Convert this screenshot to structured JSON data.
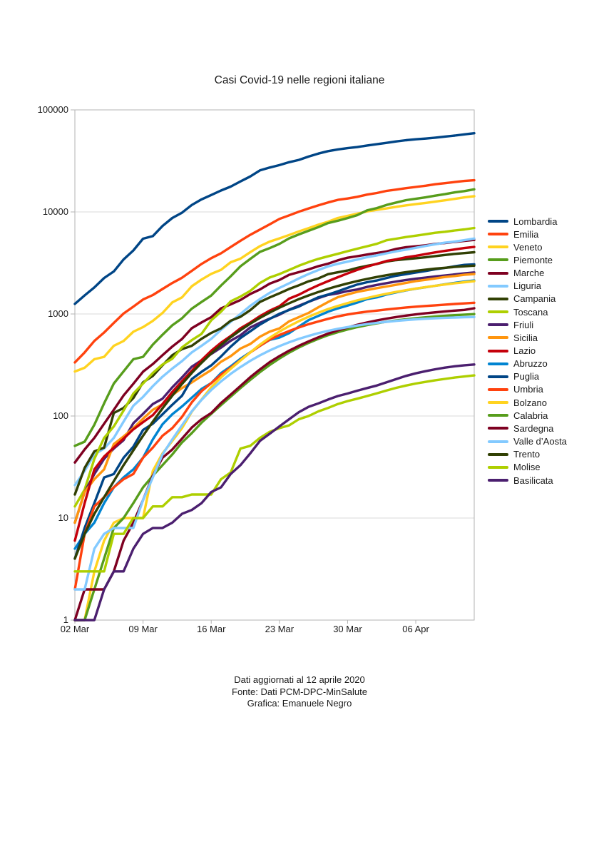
{
  "footer": {
    "updated": "Dati aggiornati al 12 aprile 2020",
    "source": "Fonte: Dati PCM-DPC-MinSalute",
    "credit": "Grafica: Emanuele Negro"
  },
  "axis_colors": {
    "grid": "#d9d9d9",
    "border": "#b3b3b3",
    "tick": "#b3b3b3"
  },
  "chart_data": {
    "type": "line",
    "title": "Casi Covid-19 nelle regioni italiane",
    "xlabel": "",
    "ylabel": "",
    "y_scale": "log",
    "ylim": [
      1,
      100000
    ],
    "grid": "horizontal",
    "legend_position": "right",
    "num_days": 42,
    "x_start_date": "02 Mar",
    "x_end_date": "12 Apr",
    "x_tick_labels": [
      "02 Mar",
      "09 Mar",
      "16 Mar",
      "23 Mar",
      "30 Mar",
      "06 Apr"
    ],
    "x_tick_day_indices": [
      0,
      7,
      14,
      21,
      28,
      35
    ],
    "y_tick_labels": [
      "100000",
      "10000",
      "1000",
      "100",
      "10",
      "1"
    ],
    "y_tick_values": [
      100000,
      10000,
      1000,
      100,
      10,
      1
    ],
    "series": [
      {
        "name": "Lombardia",
        "color": "#004586",
        "values": [
          1254,
          1520,
          1820,
          2251,
          2612,
          3420,
          4189,
          5469,
          5791,
          7280,
          8725,
          9820,
          11685,
          13272,
          14649,
          16220,
          17713,
          19884,
          22264,
          25515,
          27206,
          28761,
          30703,
          32346,
          34889,
          37298,
          39415,
          41007,
          42161,
          43208,
          44773,
          46065,
          47520,
          49118,
          50455,
          51534,
          52325,
          53414,
          54802,
          56048,
          57592,
          59052
        ]
      },
      {
        "name": "Emilia",
        "color": "#ff420e",
        "values": [
          335,
          420,
          544,
          658,
          816,
          1010,
          1180,
          1386,
          1533,
          1758,
          2011,
          2263,
          2644,
          3093,
          3522,
          3931,
          4525,
          5214,
          5968,
          6705,
          7555,
          8535,
          9254,
          10054,
          10816,
          11588,
          12383,
          13119,
          13531,
          14074,
          14787,
          15333,
          16089,
          16540,
          17089,
          17556,
          18059,
          18677,
          19128,
          19635,
          20098,
          20440
        ]
      },
      {
        "name": "Veneto",
        "color": "#ffd320",
        "values": [
          273,
          297,
          360,
          380,
          488,
          543,
          670,
          744,
          856,
          1023,
          1297,
          1453,
          1867,
          2172,
          2473,
          2704,
          3214,
          3484,
          4031,
          4617,
          5122,
          5505,
          5948,
          6442,
          6935,
          7497,
          8018,
          8724,
          9155,
          9625,
          10111,
          10484,
          10824,
          11226,
          11588,
          11925,
          12244,
          12619,
          13007,
          13421,
          13891,
          14251
        ]
      },
      {
        "name": "Piemonte",
        "color": "#579d1c",
        "values": [
          51,
          56,
          82,
          133,
          208,
          274,
          360,
          380,
          501,
          626,
          774,
          907,
          1126,
          1310,
          1516,
          1897,
          2341,
          2932,
          3461,
          4059,
          4420,
          4861,
          5515,
          6024,
          6534,
          7092,
          7784,
          8206,
          8712,
          9301,
          10353,
          10902,
          11709,
          12362,
          13050,
          13441,
          13883,
          14441,
          14936,
          15546,
          16008,
          16664
        ]
      },
      {
        "name": "Marche",
        "color": "#7e0021",
        "values": [
          35,
          47,
          61,
          84,
          115,
          159,
          207,
          272,
          323,
          394,
          479,
          568,
          725,
          825,
          930,
          1133,
          1242,
          1371,
          1568,
          1737,
          1981,
          2153,
          2421,
          2569,
          2736,
          2941,
          3114,
          3358,
          3558,
          3684,
          3825,
          3962,
          4098,
          4341,
          4512,
          4604,
          4710,
          4859,
          4956,
          5084,
          5210,
          5317
        ]
      },
      {
        "name": "Liguria",
        "color": "#83caff",
        "values": [
          21,
          29,
          42,
          48,
          61,
          88,
          126,
          154,
          196,
          243,
          292,
          345,
          420,
          488,
          570,
          700,
          836,
          1000,
          1200,
          1400,
          1610,
          1800,
          2000,
          2230,
          2467,
          2697,
          2924,
          3101,
          3254,
          3416,
          3603,
          3752,
          3929,
          4113,
          4274,
          4451,
          4642,
          4824,
          4995,
          5122,
          5288,
          5487
        ]
      },
      {
        "name": "Campania",
        "color": "#314004",
        "values": [
          17,
          31,
          45,
          49,
          107,
          120,
          150,
          214,
          247,
          314,
          394,
          452,
          488,
          571,
          652,
          724,
          860,
          937,
          1089,
          1310,
          1454,
          1592,
          1759,
          1910,
          2092,
          2231,
          2456,
          2560,
          2668,
          2829,
          2960,
          3086,
          3268,
          3370,
          3442,
          3517,
          3592,
          3688,
          3788,
          3878,
          3951,
          4024
        ]
      },
      {
        "name": "Toscana",
        "color": "#aecf00",
        "values": [
          13,
          19,
          38,
          61,
          79,
          113,
          166,
          208,
          264,
          320,
          364,
          470,
          554,
          638,
          866,
          1053,
          1330,
          1482,
          1682,
          2013,
          2277,
          2461,
          2699,
          2972,
          3226,
          3464,
          3676,
          3886,
          4122,
          4366,
          4608,
          4867,
          5273,
          5466,
          5671,
          5850,
          6045,
          6244,
          6389,
          6584,
          6736,
          6958
        ]
      },
      {
        "name": "Friuli",
        "color": "#4b1f6f",
        "values": [
          9,
          18,
          27,
          38,
          48,
          58,
          85,
          105,
          131,
          148,
          191,
          239,
          304,
          351,
          405,
          468,
          547,
          619,
          737,
          820,
          899,
          984,
          1104,
          1204,
          1318,
          1430,
          1536,
          1593,
          1676,
          1738,
          1841,
          1926,
          2005,
          2082,
          2153,
          2215,
          2269,
          2329,
          2383,
          2440,
          2500,
          2553
        ]
      },
      {
        "name": "Sicilia",
        "color": "#ff950e",
        "values": [
          9,
          18,
          24,
          30,
          53,
          63,
          76,
          94,
          115,
          130,
          160,
          188,
          213,
          246,
          282,
          340,
          386,
          458,
          508,
          598,
          672,
          721,
          847,
          931,
          1024,
          1164,
          1310,
          1460,
          1555,
          1647,
          1718,
          1791,
          1859,
          1932,
          2017,
          2096,
          2159,
          2231,
          2302,
          2355,
          2419,
          2464
        ]
      },
      {
        "name": "Lazio",
        "color": "#c5000b",
        "values": [
          6,
          14,
          30,
          40,
          49,
          60,
          74,
          87,
          102,
          131,
          172,
          219,
          277,
          353,
          436,
          523,
          608,
          724,
          823,
          951,
          1078,
          1190,
          1414,
          1545,
          1728,
          1912,
          2099,
          2291,
          2497,
          2706,
          2914,
          3095,
          3306,
          3433,
          3597,
          3711,
          3860,
          4014,
          4149,
          4289,
          4429,
          4538
        ]
      },
      {
        "name": "Abruzzo",
        "color": "#0084d1",
        "values": [
          5,
          7,
          9,
          14,
          20,
          25,
          30,
          39,
          59,
          83,
          104,
          124,
          151,
          184,
          210,
          263,
          306,
          364,
          421,
          487,
          557,
          587,
          649,
          752,
          871,
          957,
          1053,
          1133,
          1208,
          1293,
          1401,
          1455,
          1553,
          1628,
          1703,
          1769,
          1827,
          1889,
          1953,
          2018,
          2078,
          2129
        ]
      },
      {
        "name": "Puglia",
        "color": "#004586",
        "values": [
          4,
          8,
          14,
          25,
          27,
          39,
          50,
          73,
          84,
          104,
          129,
          158,
          230,
          271,
          313,
          383,
          478,
          581,
          676,
          787,
          895,
          1005,
          1094,
          1182,
          1316,
          1458,
          1549,
          1668,
          1803,
          1946,
          2048,
          2127,
          2253,
          2371,
          2457,
          2543,
          2636,
          2743,
          2827,
          2934,
          3028,
          3065
        ]
      },
      {
        "name": "Umbria",
        "color": "#ff420e",
        "values": [
          2,
          7,
          13,
          16,
          20,
          24,
          27,
          39,
          49,
          64,
          76,
          98,
          136,
          175,
          210,
          254,
          297,
          353,
          419,
          487,
          560,
          622,
          681,
          738,
          794,
          844,
          896,
          946,
          988,
          1023,
          1054,
          1078,
          1106,
          1132,
          1158,
          1178,
          1198,
          1216,
          1234,
          1252,
          1270,
          1288
        ]
      },
      {
        "name": "Bolzano",
        "color": "#ffd320",
        "values": [
          1,
          1,
          3,
          6,
          9,
          10,
          10,
          10,
          29,
          43,
          57,
          76,
          110,
          145,
          191,
          239,
          290,
          350,
          420,
          500,
          585,
          672,
          760,
          850,
          940,
          1030,
          1117,
          1200,
          1280,
          1360,
          1435,
          1507,
          1577,
          1645,
          1710,
          1773,
          1833,
          1890,
          1945,
          1998,
          2048,
          2096
        ]
      },
      {
        "name": "Calabria",
        "color": "#579d1c",
        "values": [
          1,
          1,
          2,
          4,
          8,
          10,
          14,
          20,
          26,
          33,
          42,
          55,
          68,
          86,
          105,
          128,
          155,
          188,
          226,
          269,
          316,
          366,
          418,
          470,
          521,
          571,
          620,
          663,
          705,
          743,
          778,
          810,
          840,
          865,
          888,
          908,
          927,
          944,
          959,
          973,
          985,
          997
        ]
      },
      {
        "name": "Sardegna",
        "color": "#7e0021",
        "values": [
          1,
          2,
          2,
          2,
          3,
          6,
          9,
          15,
          26,
          39,
          47,
          60,
          77,
          93,
          107,
          134,
          162,
          197,
          240,
          286,
          337,
          386,
          437,
          488,
          539,
          591,
          642,
          691,
          738,
          783,
          825,
          864,
          900,
          933,
          963,
          990,
          1015,
          1038,
          1059,
          1079,
          1096,
          1138
        ]
      },
      {
        "name": "Valle d’Aosta",
        "color": "#83caff",
        "values": [
          2,
          2,
          5,
          7,
          8,
          8,
          8,
          15,
          25,
          42,
          59,
          81,
          111,
          144,
          180,
          218,
          259,
          302,
          347,
          393,
          439,
          484,
          528,
          570,
          610,
          648,
          683,
          715,
          744,
          771,
          796,
          818,
          838,
          856,
          872,
          886,
          898,
          908,
          916,
          923,
          928,
          933
        ]
      },
      {
        "name": "Trento",
        "color": "#314004",
        "values": [
          4,
          7,
          11,
          16,
          23,
          33,
          46,
          64,
          88,
          119,
          158,
          206,
          264,
          332,
          410,
          497,
          592,
          694,
          802,
          915,
          1032,
          1152,
          1274,
          1397,
          1520,
          1642,
          1762,
          1879,
          1992,
          2101,
          2205,
          2304,
          2398,
          2486,
          2568,
          2644,
          2714,
          2778,
          2836,
          2888,
          2934,
          2974
        ]
      },
      {
        "name": "Molise",
        "color": "#aecf00",
        "values": [
          3,
          3,
          3,
          3,
          7,
          7,
          10,
          10,
          13,
          13,
          16,
          16,
          17,
          17,
          17,
          24,
          28,
          48,
          51,
          61,
          70,
          76,
          81,
          93,
          100,
          111,
          120,
          131,
          140,
          148,
          157,
          167,
          178,
          189,
          199,
          208,
          216,
          224,
          231,
          238,
          244,
          250
        ]
      },
      {
        "name": "Basilicata",
        "color": "#4b1f6f",
        "values": [
          1,
          1,
          1,
          2,
          3,
          3,
          5,
          7,
          8,
          8,
          9,
          11,
          12,
          14,
          18,
          20,
          27,
          33,
          43,
          57,
          67,
          79,
          93,
          109,
          123,
          133,
          145,
          157,
          166,
          177,
          188,
          199,
          214,
          230,
          247,
          262,
          275,
          287,
          298,
          307,
          314,
          320
        ]
      }
    ]
  }
}
